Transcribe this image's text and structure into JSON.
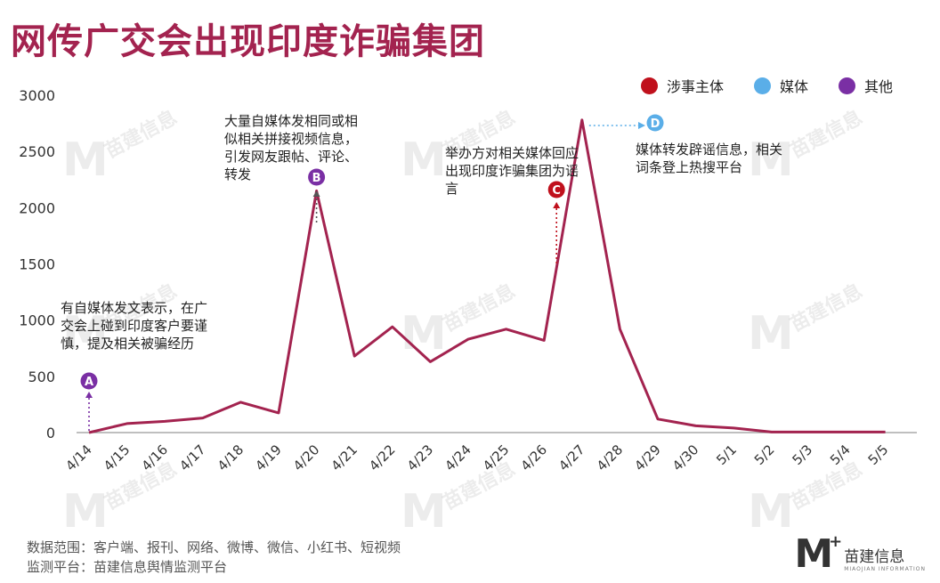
{
  "title": "网传广交会出现印度诈骗集团",
  "legend": [
    {
      "label": "涉事主体",
      "color": "#c0101c"
    },
    {
      "label": "媒体",
      "color": "#5aaee8"
    },
    {
      "label": "其他",
      "color": "#7a2fa4"
    }
  ],
  "chart_data": {
    "type": "line",
    "categories": [
      "4/14",
      "4/15",
      "4/16",
      "4/17",
      "4/18",
      "4/19",
      "4/20",
      "4/21",
      "4/22",
      "4/23",
      "4/24",
      "4/25",
      "4/26",
      "4/27",
      "4/28",
      "4/29",
      "4/30",
      "5/1",
      "5/2",
      "5/3",
      "5/4",
      "5/5"
    ],
    "series": [
      {
        "values": [
          0,
          80,
          100,
          130,
          270,
          175,
          2150,
          680,
          940,
          630,
          830,
          920,
          820,
          2780,
          920,
          120,
          60,
          40,
          5,
          5,
          5,
          5
        ],
        "color": "#a3234f"
      }
    ],
    "ylim": [
      0,
      3000
    ],
    "yticks": [
      0,
      500,
      1000,
      1500,
      2000,
      2500,
      3000
    ],
    "grid": false
  },
  "annotations": [
    {
      "marker": "A",
      "category": "4/14",
      "color": "#7a2fa4",
      "text": "有自媒体发文表示，在广交会上碰到印度客户要谨慎，提及相关被骗经历"
    },
    {
      "marker": "B",
      "category": "4/20",
      "color": "#7a2fa4",
      "text": "大量自媒体发相同或相似相关拼接视频信息，引发网友跟帖、评论、转发"
    },
    {
      "marker": "C",
      "category": "4/26",
      "color": "#c0101c",
      "text": "举办方对相关媒体回应出现印度诈骗集团为谣言"
    },
    {
      "marker": "D",
      "category": "4/27",
      "color": "#5aaee8",
      "text": "媒体转发辟谣信息，相关词条登上热搜平台"
    }
  ],
  "footer": {
    "line1": "数据范围：客户端、报刊、网络、微博、微信、小红书、短视频",
    "line2": "监测平台：苗建信息舆情监测平台"
  },
  "logo": {
    "mark": "M",
    "plus": "+",
    "name": "苗建信息",
    "sub": "MIAOJIAN INFORMATION"
  },
  "watermark": {
    "mark": "M",
    "text": "苗建信息"
  }
}
